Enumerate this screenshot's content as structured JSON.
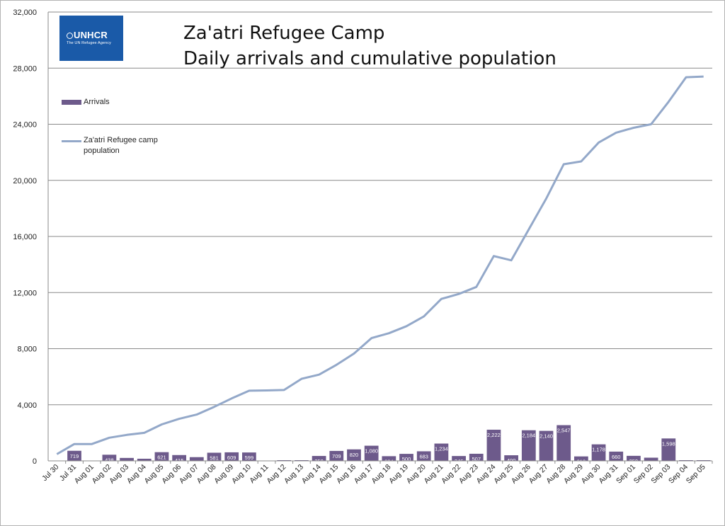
{
  "logo": {
    "name": "UNHCR",
    "tagline": "The UN Refugee Agency"
  },
  "title_line1": "Za'atri Refugee Camp",
  "title_line2": "Daily arrivals and cumulative population",
  "legend": {
    "bar_label": "Arrivals",
    "line_label_1": "Za'atri Refugee camp",
    "line_label_2": "population"
  },
  "colors": {
    "bar": "#6d5a8b",
    "line": "#93a8c9",
    "grid": "#8a8a8a"
  },
  "chart_data": {
    "type": "bar",
    "title": "Za'atri Refugee Camp Daily arrivals and cumulative population",
    "ylim": [
      0,
      32000
    ],
    "yticks": [
      "0",
      "4,000",
      "8,000",
      "12,000",
      "16,000",
      "20,000",
      "24,000",
      "28,000",
      "32,000"
    ],
    "ytick_values": [
      0,
      4000,
      8000,
      12000,
      16000,
      20000,
      24000,
      28000,
      32000
    ],
    "grid": true,
    "legend_position": "left",
    "categories": [
      "Jul 30",
      "Jul 31",
      "Aug 01",
      "Aug 02",
      "Aug 03",
      "Aug 04",
      "Aug 05",
      "Aug 06",
      "Aug 07",
      "Aug 08",
      "Aug 09",
      "Aug 10",
      "Aug 11",
      "Aug 12",
      "Aug 13",
      "Aug 14",
      "Aug 15",
      "Aug 16",
      "Aug 17",
      "Aug 18",
      "Aug 19",
      "Aug 20",
      "Aug 21",
      "Aug 22",
      "Aug 23",
      "Aug 24",
      "Aug 25",
      "Aug 26",
      "Aug 27",
      "Aug 28",
      "Aug 29",
      "Aug 30",
      "Aug 31",
      "Sep 01",
      "Sep 02",
      "Sep 03",
      "Sep 04",
      "Sep 05"
    ],
    "series": [
      {
        "name": "Arrivals",
        "type": "bar",
        "values": [
          0,
          719,
          0,
          438,
          209,
          152,
          621,
          415,
          266,
          581,
          609,
          599,
          0,
          50,
          50,
          350,
          709,
          820,
          1080,
          334,
          500,
          683,
          1234,
          346,
          507,
          2222,
          400,
          2184,
          2140,
          2547,
          318,
          1178,
          660,
          359,
          227,
          1598,
          50,
          50
        ],
        "labels": [
          "",
          "719",
          "",
          "438",
          "209",
          "152",
          "621",
          "415",
          "266",
          "581",
          "609",
          "599",
          "",
          "",
          "",
          "350",
          "709",
          "820",
          "1,080",
          "334",
          "500",
          "683",
          "1,234",
          "346",
          "507",
          "2,222",
          "400",
          "2,184",
          "2,140",
          "2,547",
          "318",
          "1,178",
          "660",
          "359",
          "227",
          "1,598",
          "",
          ""
        ]
      },
      {
        "name": "Za'atri Refugee camp population",
        "type": "line",
        "values": [
          480,
          1200,
          1200,
          1650,
          1850,
          2000,
          2600,
          3000,
          3300,
          3850,
          4450,
          5000,
          5020,
          5050,
          5850,
          6150,
          6850,
          7650,
          8750,
          9100,
          9600,
          10300,
          11550,
          11900,
          12400,
          14600,
          14300,
          16500,
          18700,
          21150,
          21350,
          22700,
          23400,
          23750,
          24000,
          25600,
          27350,
          27400
        ]
      }
    ]
  }
}
